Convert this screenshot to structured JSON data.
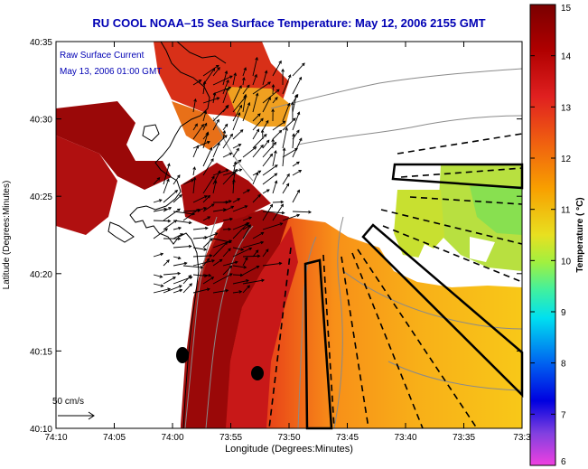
{
  "title": "RU COOL  NOAA–15  Sea Surface Temperature:  May 12, 2006 2155 GMT",
  "overlay": {
    "line1": "Raw Surface Current",
    "line2": "May 13, 2006 01:00 GMT"
  },
  "scale_label": "50 cm/s",
  "axes": {
    "xlabel": "Longitude (Degrees:Minutes)",
    "ylabel": "Latitude (Degrees:Minutes)",
    "x_ticks": [
      "74:10",
      "74:05",
      "74:00",
      "73:55",
      "73:50",
      "73:45",
      "73:40",
      "73:35",
      "73:3"
    ],
    "y_ticks": [
      "40:35",
      "40:30",
      "40:25",
      "40:20",
      "40:15",
      "40:10"
    ]
  },
  "colorbar": {
    "label": "Temperature ( °C)",
    "ticks": [
      "15",
      "14",
      "13",
      "12",
      "11",
      "10",
      "9",
      "8",
      "7",
      "6"
    ],
    "min": 6,
    "max": 15
  }
}
